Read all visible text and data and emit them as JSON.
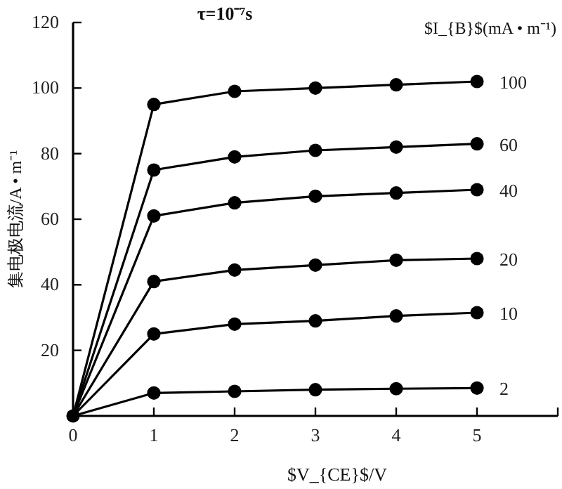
{
  "chart_data": {
    "type": "line",
    "title": "τ=10⁻⁷s",
    "xlabel": "$V_{CE}$/V",
    "ylabel": "集电极电流/A • m⁻¹",
    "legend_title": "$I_{B}$(mA • m⁻¹)",
    "x": [
      0,
      1,
      2,
      3,
      4,
      5
    ],
    "series": [
      {
        "name": "100",
        "color": "#000000",
        "values": [
          0,
          95,
          99,
          100,
          101,
          102
        ]
      },
      {
        "name": "60",
        "color": "#000000",
        "values": [
          0,
          75,
          79,
          81,
          82,
          83
        ]
      },
      {
        "name": "40",
        "color": "#000000",
        "values": [
          0,
          61,
          65,
          67,
          68,
          69
        ]
      },
      {
        "name": "20",
        "color": "#000000",
        "values": [
          0,
          41,
          44.5,
          46,
          47.5,
          48
        ]
      },
      {
        "name": "10",
        "color": "#000000",
        "values": [
          0,
          25,
          28,
          29,
          30.5,
          31.5
        ]
      },
      {
        "name": "2",
        "color": "#000000",
        "values": [
          0,
          7,
          7.5,
          8,
          8.3,
          8.5
        ]
      }
    ],
    "xlim": [
      0,
      6
    ],
    "ylim": [
      0,
      120
    ],
    "xticks": [
      0,
      1,
      2,
      3,
      4,
      5,
      {
        "value": 6,
        "label": null
      }
    ],
    "yticks": [
      20,
      40,
      60,
      80,
      100,
      120
    ],
    "marker": "circle",
    "line_style": "solid",
    "grid": false,
    "legend": false
  }
}
